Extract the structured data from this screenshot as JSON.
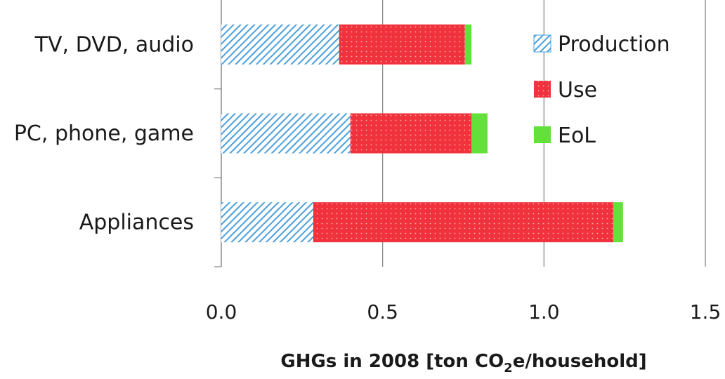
{
  "chart_data": {
    "type": "bar",
    "orientation": "horizontal",
    "stacked": true,
    "categories": [
      "TV, DVD, audio",
      "PC, phone, game",
      "Appliances"
    ],
    "series": [
      {
        "name": "Production",
        "values": [
          0.365,
          0.4,
          0.285
        ],
        "color": "#4a9fdc",
        "pattern": "diagonal-hatch"
      },
      {
        "name": "Use",
        "values": [
          0.39,
          0.375,
          0.93
        ],
        "color": "#f0323c",
        "pattern": "dots"
      },
      {
        "name": "EoL",
        "values": [
          0.02,
          0.05,
          0.03
        ],
        "color": "#63e03a",
        "pattern": "solid"
      }
    ],
    "x_ticks": [
      "0.0",
      "0.5",
      "1.0",
      "1.5"
    ],
    "xlim": [
      0,
      1.5
    ],
    "xlabel": {
      "prefix": "GHGs in 2008 [ton CO",
      "sub": "2",
      "suffix": "e/household]"
    },
    "grid": true,
    "legend_position": "top-right"
  }
}
